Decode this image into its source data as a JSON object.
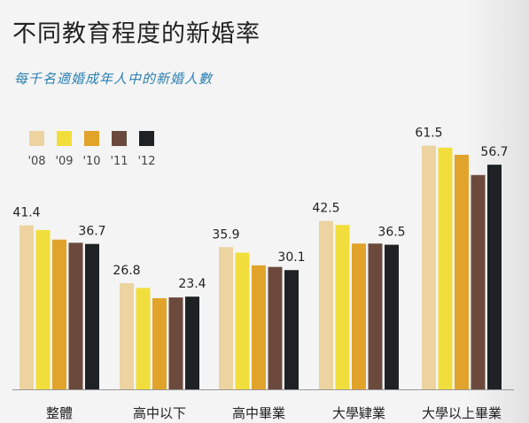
{
  "title": "不同教育程度的新婚率",
  "subtitle": "每千名適婚成年人中的新婚人數",
  "chart_data": {
    "type": "bar",
    "title": "不同教育程度的新婚率",
    "subtitle": "每千名適婚成年人中的新婚人數",
    "categories": [
      "整體",
      "高中以下",
      "高中畢業",
      "大學肄業",
      "大學以上畢業"
    ],
    "series": [
      {
        "name": "'08",
        "color": "#ecd3a0",
        "values": [
          41.4,
          26.8,
          35.9,
          42.5,
          61.5
        ]
      },
      {
        "name": "'09",
        "color": "#f1de3c",
        "values": [
          40.2,
          25.6,
          34.5,
          41.5,
          61.0
        ]
      },
      {
        "name": "'10",
        "color": "#e1a32a",
        "values": [
          37.8,
          23.0,
          31.3,
          36.8,
          59.2
        ]
      },
      {
        "name": "'11",
        "color": "#6b4a3d",
        "values": [
          37.0,
          23.2,
          30.9,
          36.8,
          54.1
        ]
      },
      {
        "name": "'12",
        "color": "#1f2224",
        "values": [
          36.7,
          23.4,
          30.1,
          36.5,
          56.7
        ]
      }
    ],
    "labeled_values": [
      {
        "category": 0,
        "series": 0,
        "text": "41.4"
      },
      {
        "category": 0,
        "series": 4,
        "text": "36.7"
      },
      {
        "category": 1,
        "series": 0,
        "text": "26.8"
      },
      {
        "category": 1,
        "series": 4,
        "text": "23.4"
      },
      {
        "category": 2,
        "series": 0,
        "text": "35.9"
      },
      {
        "category": 2,
        "series": 4,
        "text": "30.1"
      },
      {
        "category": 3,
        "series": 0,
        "text": "42.5"
      },
      {
        "category": 3,
        "series": 4,
        "text": "36.5"
      },
      {
        "category": 4,
        "series": 0,
        "text": "61.5"
      },
      {
        "category": 4,
        "series": 4,
        "text": "56.7"
      }
    ],
    "ylim": [
      0,
      67
    ],
    "legend": "top-left",
    "grid": false,
    "xlabel": "",
    "ylabel": ""
  }
}
